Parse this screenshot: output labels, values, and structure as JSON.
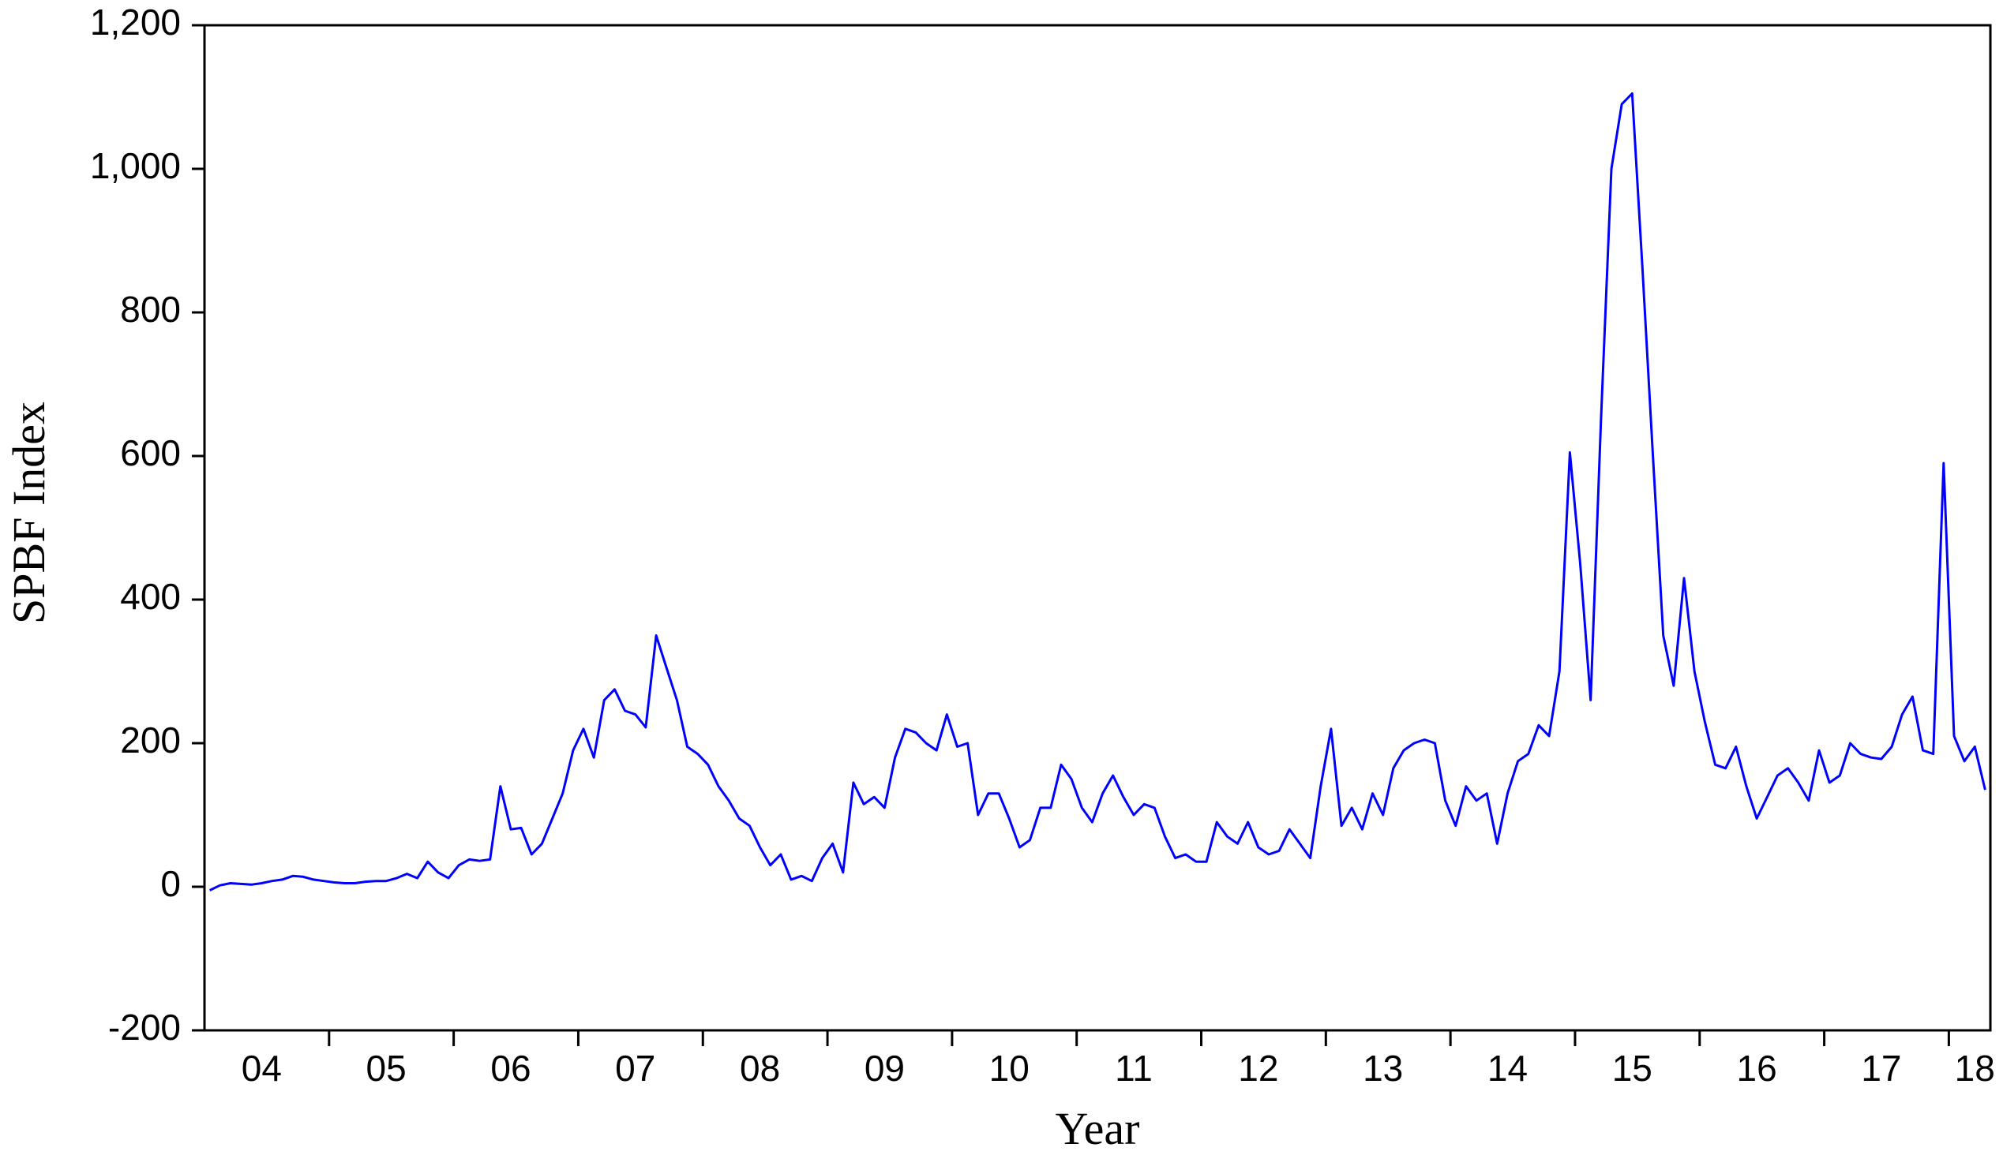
{
  "chart_data": {
    "type": "line",
    "x_label": "Year",
    "y_label": "SPBF Index",
    "color": "#0000ff",
    "categories": [
      null,
      null,
      null,
      null,
      null,
      "04",
      null,
      null,
      null,
      null,
      null,
      null,
      null,
      null,
      null,
      null,
      null,
      "05",
      null,
      null,
      null,
      null,
      null,
      null,
      null,
      null,
      null,
      null,
      null,
      "06",
      null,
      null,
      null,
      null,
      null,
      null,
      null,
      null,
      null,
      null,
      null,
      "07",
      null,
      null,
      null,
      null,
      null,
      null,
      null,
      null,
      null,
      null,
      null,
      "08",
      null,
      null,
      null,
      null,
      null,
      null,
      null,
      null,
      null,
      null,
      null,
      "09",
      null,
      null,
      null,
      null,
      null,
      null,
      null,
      null,
      null,
      null,
      null,
      "10",
      null,
      null,
      null,
      null,
      null,
      null,
      null,
      null,
      null,
      null,
      null,
      "11",
      null,
      null,
      null,
      null,
      null,
      null,
      null,
      null,
      null,
      null,
      null,
      "12",
      null,
      null,
      null,
      null,
      null,
      null,
      null,
      null,
      null,
      null,
      null,
      "13",
      null,
      null,
      null,
      null,
      null,
      null,
      null,
      null,
      null,
      null,
      null,
      "14",
      null,
      null,
      null,
      null,
      null,
      null,
      null,
      null,
      null,
      null,
      null,
      "15",
      null,
      null,
      null,
      null,
      null,
      null,
      null,
      null,
      null,
      null,
      null,
      "16",
      null,
      null,
      null,
      null,
      null,
      null,
      null,
      null,
      null,
      null,
      null,
      "17",
      null,
      null,
      null,
      null,
      null,
      null,
      null,
      null,
      "18",
      null
    ],
    "values": [
      -5,
      2,
      5,
      4,
      3,
      5,
      8,
      10,
      15,
      14,
      10,
      8,
      6,
      5,
      5,
      7,
      8,
      8,
      12,
      18,
      12,
      35,
      20,
      12,
      30,
      38,
      36,
      38,
      140,
      80,
      82,
      45,
      60,
      95,
      130,
      190,
      220,
      180,
      260,
      275,
      245,
      240,
      222,
      350,
      305,
      260,
      195,
      185,
      170,
      140,
      120,
      95,
      85,
      55,
      30,
      45,
      10,
      15,
      8,
      40,
      60,
      20,
      145,
      115,
      125,
      110,
      180,
      220,
      215,
      200,
      190,
      240,
      195,
      200,
      100,
      130,
      130,
      95,
      55,
      65,
      110,
      110,
      170,
      150,
      110,
      90,
      130,
      155,
      125,
      100,
      115,
      110,
      70,
      40,
      45,
      35,
      35,
      90,
      70,
      60,
      90,
      55,
      45,
      50,
      80,
      60,
      40,
      140,
      220,
      85,
      110,
      80,
      130,
      100,
      165,
      190,
      200,
      205,
      200,
      120,
      85,
      140,
      120,
      130,
      60,
      130,
      175,
      185,
      225,
      210,
      300,
      605,
      450,
      260,
      650,
      1000,
      1090,
      1105,
      860,
      600,
      350,
      280,
      430,
      300,
      230,
      170,
      165,
      195,
      140,
      95,
      125,
      155,
      165,
      145,
      120,
      190,
      145,
      155,
      200,
      185,
      180,
      178,
      195,
      240,
      265,
      190,
      185,
      590,
      210,
      175,
      195,
      135
    ],
    "ylim": [
      -200,
      1200
    ],
    "yticks": [
      -200,
      0,
      200,
      400,
      600,
      800,
      {
        "value": 1000,
        "label": "1,000"
      },
      {
        "value": 1200,
        "label": "1,200"
      }
    ]
  }
}
